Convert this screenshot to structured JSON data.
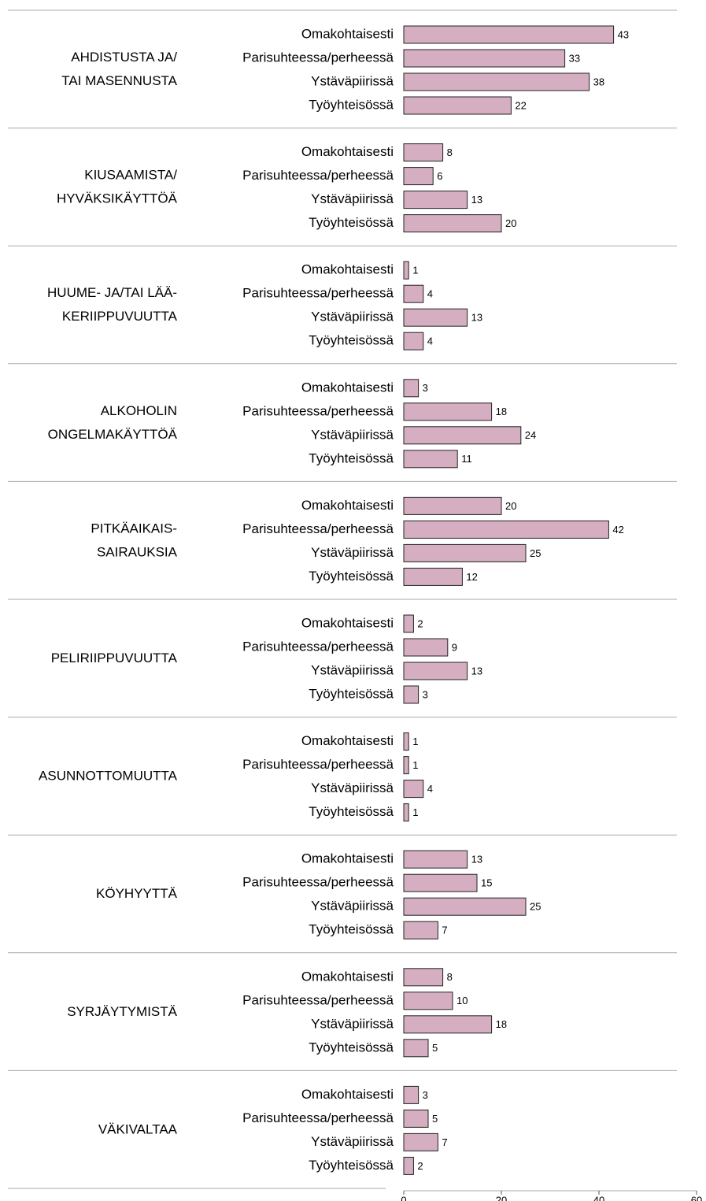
{
  "chart_data": {
    "type": "bar",
    "orientation": "horizontal",
    "categories": [
      [
        "AHDISTUSTA JA/",
        "TAI MASENNUSTA"
      ],
      [
        "KIUSAAMISTA/",
        "HYVÄKSIKÄYTTÖÄ"
      ],
      [
        "HUUME- JA/TAI LÄÄ-",
        "KERIIPPUVUUTTA"
      ],
      [
        "ALKOHOLIN",
        "ONGELMAKÄYTTÖÄ"
      ],
      [
        "PITKÄAIKAIS-",
        "SAIRAUKSIA"
      ],
      [
        "PELIRIIPPUVUUTTA"
      ],
      [
        "ASUNNOTTOMUUTTA"
      ],
      [
        "KÖYHYYTTÄ"
      ],
      [
        "SYRJÄYTYMISTÄ"
      ],
      [
        "VÄKIVALTAA"
      ]
    ],
    "series": [
      {
        "name": "Omakohtaisesti",
        "color": "#d5afc1",
        "values": [
          43,
          8,
          1,
          3,
          20,
          2,
          1,
          13,
          8,
          3
        ]
      },
      {
        "name": "Parisuhteessa/perheessä",
        "color": "#d5afc1",
        "values": [
          33,
          6,
          4,
          18,
          42,
          9,
          1,
          15,
          10,
          5
        ]
      },
      {
        "name": "Ystäväpiirissä",
        "color": "#d5afc1",
        "values": [
          38,
          13,
          13,
          24,
          25,
          13,
          4,
          25,
          18,
          7
        ]
      },
      {
        "name": "Työyhteisössä",
        "color": "#d5afc1",
        "values": [
          22,
          20,
          4,
          11,
          12,
          3,
          1,
          7,
          5,
          2
        ]
      }
    ],
    "xlim": [
      0,
      60
    ],
    "xticks": [
      0,
      20,
      40,
      60
    ]
  }
}
